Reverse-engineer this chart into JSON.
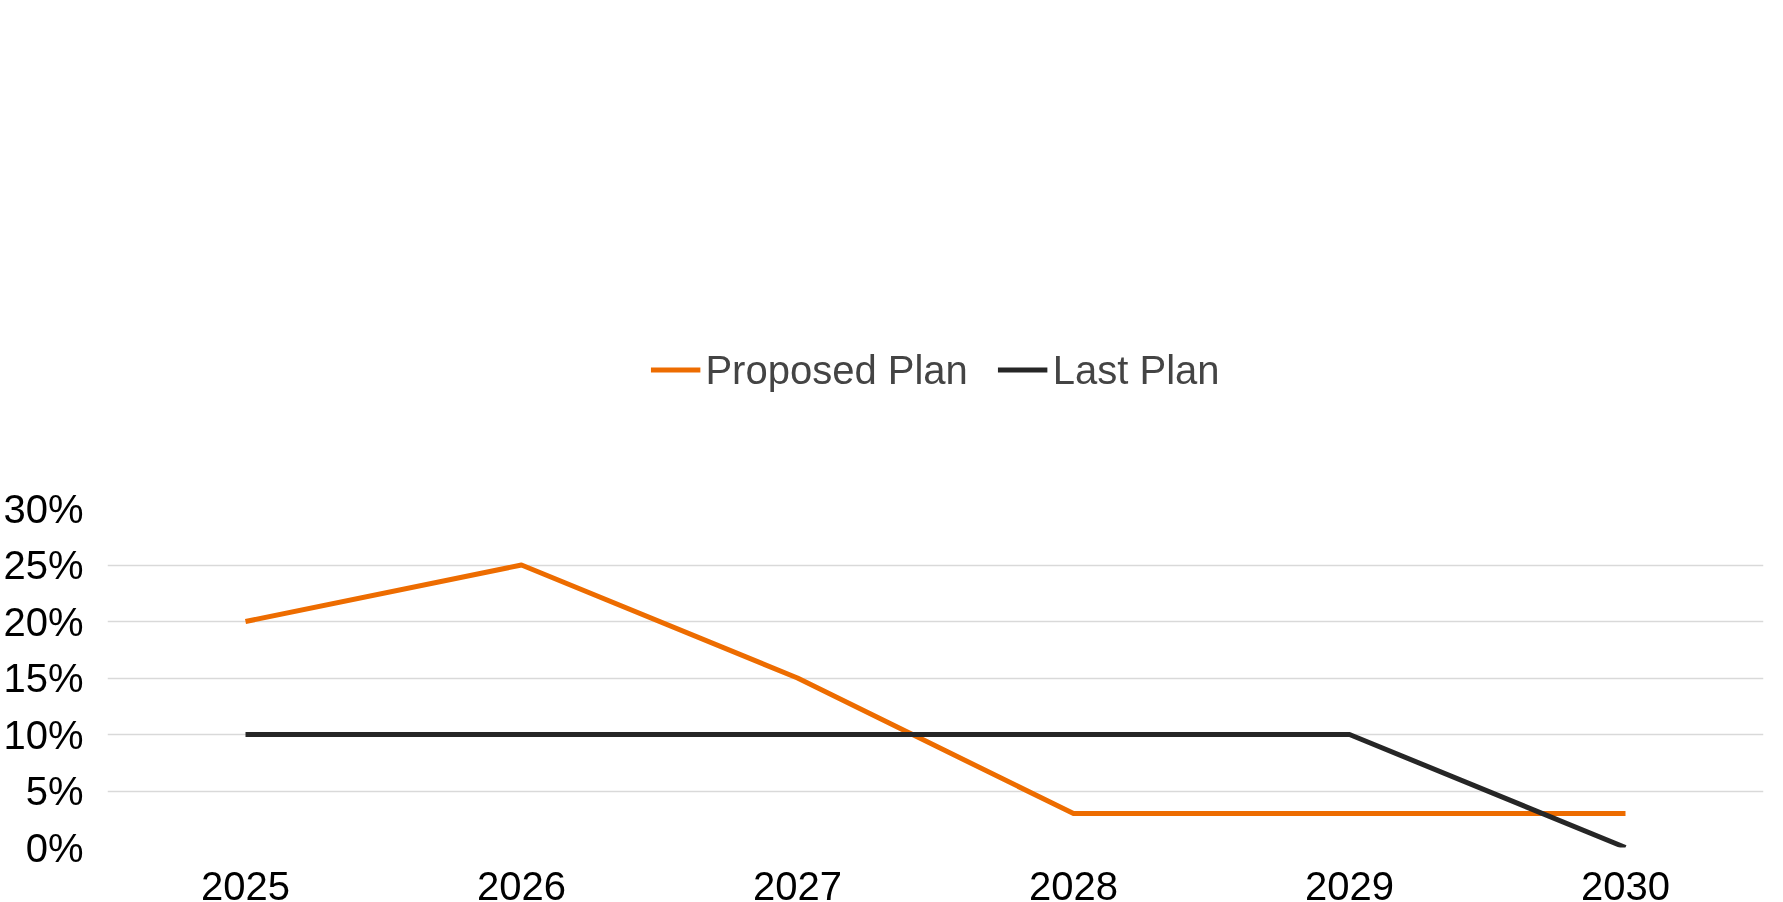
{
  "chart_data": {
    "type": "line",
    "categories": [
      "2025",
      "2026",
      "2027",
      "2028",
      "2029",
      "2030"
    ],
    "series": [
      {
        "name": "Proposed Plan",
        "color": "#ed6c00",
        "values": [
          20,
          25,
          15,
          3,
          3,
          3
        ]
      },
      {
        "name": "Last Plan",
        "color": "#262626",
        "values": [
          10,
          10,
          10,
          10,
          10,
          0
        ]
      }
    ],
    "ylim": [
      0,
      30
    ],
    "yticks": [
      {
        "value": 0,
        "label": "0%"
      },
      {
        "value": 5,
        "label": "5%"
      },
      {
        "value": 10,
        "label": "10%"
      },
      {
        "value": 15,
        "label": "15%"
      },
      {
        "value": 20,
        "label": "20%"
      },
      {
        "value": 25,
        "label": "25%"
      },
      {
        "value": 30,
        "label": "30%"
      }
    ],
    "grid": "y",
    "legend": "top",
    "marker": "none",
    "line_style": "solid"
  }
}
